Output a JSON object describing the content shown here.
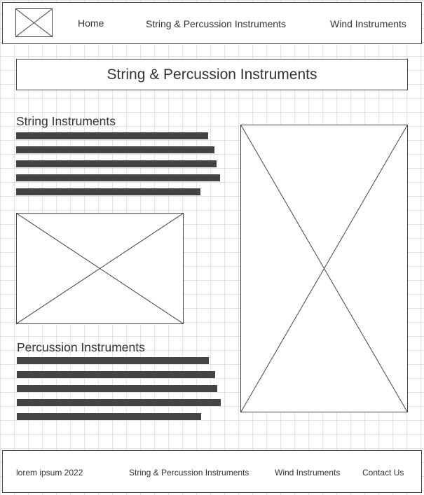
{
  "header": {
    "logo_icon": "image-placeholder-icon",
    "nav": {
      "home": "Home",
      "string_percussion": "String & Percussion Instruments",
      "wind": "Wind Instruments"
    }
  },
  "main": {
    "page_title": "String & Percussion Instruments",
    "string_section": {
      "heading": "String Instruments",
      "image_icon": "image-placeholder-icon"
    },
    "percussion_section": {
      "heading": "Percussion Instruments"
    },
    "main_image_icon": "image-placeholder-icon"
  },
  "footer": {
    "copyright": "lorem ipsum 2022",
    "links": {
      "string_percussion": "String & Percussion Instruments",
      "wind": "Wind Instruments",
      "contact": "Contact Us"
    }
  },
  "colors": {
    "outline": "#444444",
    "text": "#333333",
    "grid": "#e2e2e2",
    "background": "#ffffff"
  }
}
